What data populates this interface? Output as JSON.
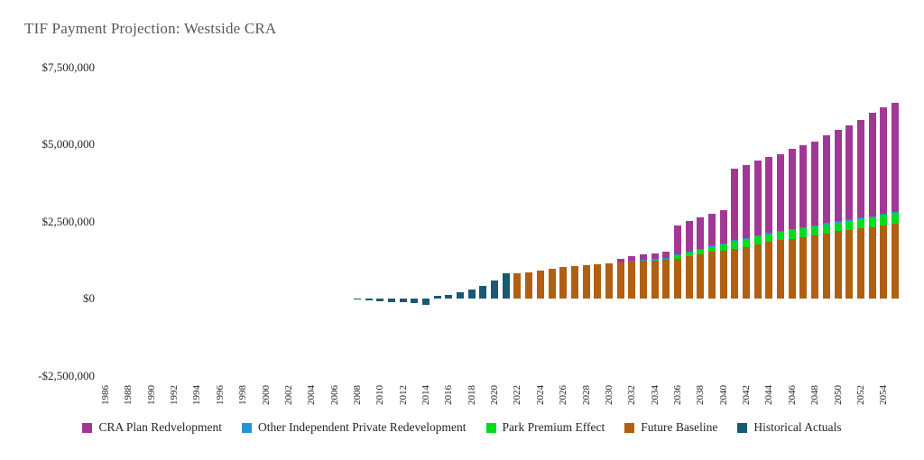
{
  "title": "TIF Payment Projection: Westside CRA",
  "chart_data": {
    "type": "bar",
    "stacked": true,
    "title": "TIF Payment Projection: Westside CRA",
    "xlabel": "",
    "ylabel": "",
    "grid": false,
    "legend_position": "bottom",
    "ylim": [
      -2500000,
      7500000
    ],
    "x_range": [
      1985,
      2056
    ],
    "y_ticks": [
      {
        "label": "$7,500,000",
        "value": 7500000
      },
      {
        "label": "$5,000,000",
        "value": 5000000
      },
      {
        "label": "$2,500,000",
        "value": 2500000
      },
      {
        "label": "$0",
        "value": 0
      },
      {
        "label": "-$2,500,000",
        "value": -2500000
      }
    ],
    "x_ticks": [
      1986,
      1988,
      1990,
      1992,
      1994,
      1996,
      1998,
      2000,
      2002,
      2004,
      2006,
      2008,
      2010,
      2012,
      2014,
      2016,
      2018,
      2020,
      2022,
      2024,
      2026,
      2028,
      2030,
      2032,
      2034,
      2036,
      2038,
      2040,
      2042,
      2044,
      2046,
      2048,
      2050,
      2052,
      2054
    ],
    "years": [
      2008,
      2009,
      2010,
      2011,
      2012,
      2013,
      2014,
      2015,
      2016,
      2017,
      2018,
      2019,
      2020,
      2021,
      2022,
      2023,
      2024,
      2025,
      2026,
      2027,
      2028,
      2029,
      2030,
      2031,
      2032,
      2033,
      2034,
      2035,
      2036,
      2037,
      2038,
      2039,
      2040,
      2041,
      2042,
      2043,
      2044,
      2045,
      2046,
      2047,
      2048,
      2049,
      2050,
      2051,
      2052,
      2053,
      2054,
      2055
    ],
    "stack_order_bottom_to_top": [
      "future_baseline",
      "park_premium",
      "other_independent",
      "cra_plan",
      "historical"
    ],
    "legend_order": [
      "cra_plan",
      "other_independent",
      "park_premium",
      "future_baseline",
      "historical"
    ],
    "series": [
      {
        "id": "cra_plan",
        "name": "CRA Plan Redvelopment",
        "color": "#A23896",
        "values": [
          0,
          0,
          0,
          0,
          0,
          0,
          0,
          0,
          0,
          0,
          0,
          0,
          0,
          0,
          0,
          0,
          0,
          0,
          0,
          0,
          0,
          0,
          0,
          110000,
          130000,
          160000,
          185000,
          210000,
          940000,
          990000,
          1020000,
          1030000,
          1080000,
          2310000,
          2350000,
          2420000,
          2460000,
          2490000,
          2600000,
          2660000,
          2720000,
          2850000,
          2960000,
          3050000,
          3170000,
          3350000,
          3450000,
          3540000
        ]
      },
      {
        "id": "other_independent",
        "name": "Other Independent Private Redevelopment",
        "color": "#2097D3",
        "values": [
          0,
          0,
          0,
          0,
          0,
          0,
          0,
          0,
          0,
          0,
          0,
          0,
          0,
          0,
          0,
          0,
          0,
          0,
          0,
          0,
          0,
          0,
          0,
          0,
          40000,
          40000,
          40000,
          40000,
          40000,
          40000,
          40000,
          40000,
          40000,
          40000,
          40000,
          40000,
          40000,
          40000,
          40000,
          40000,
          40000,
          40000,
          40000,
          40000,
          40000,
          40000,
          40000,
          40000
        ]
      },
      {
        "id": "park_premium",
        "name": "Park Premium Effect",
        "color": "#00DD1C",
        "values": [
          0,
          0,
          0,
          0,
          0,
          0,
          0,
          0,
          0,
          0,
          0,
          0,
          0,
          0,
          0,
          0,
          0,
          0,
          0,
          0,
          0,
          0,
          0,
          0,
          0,
          0,
          0,
          0,
          100000,
          125000,
          145000,
          170000,
          185000,
          240000,
          250000,
          255000,
          260000,
          265000,
          270000,
          275000,
          280000,
          285000,
          290000,
          300000,
          305000,
          315000,
          325000,
          330000
        ]
      },
      {
        "id": "future_baseline",
        "name": "Future Baseline",
        "color": "#B15F10",
        "values": [
          0,
          0,
          0,
          0,
          0,
          0,
          0,
          0,
          0,
          0,
          0,
          0,
          0,
          0,
          820000,
          860000,
          920000,
          965000,
          1010000,
          1050000,
          1080000,
          1110000,
          1140000,
          1170000,
          1200000,
          1230000,
          1240000,
          1270000,
          1290000,
          1360000,
          1430000,
          1510000,
          1560000,
          1610000,
          1680000,
          1750000,
          1830000,
          1890000,
          1940000,
          2000000,
          2060000,
          2120000,
          2180000,
          2220000,
          2280000,
          2320000,
          2380000,
          2440000
        ]
      },
      {
        "id": "historical",
        "name": "Historical Actuals",
        "color": "#1C5876",
        "values": [
          -20000,
          -60000,
          -80000,
          -105000,
          -125000,
          -160000,
          -195000,
          100000,
          120000,
          215000,
          295000,
          410000,
          585000,
          820000,
          0,
          0,
          0,
          0,
          0,
          0,
          0,
          0,
          0,
          0,
          0,
          0,
          0,
          0,
          0,
          0,
          0,
          0,
          0,
          0,
          0,
          0,
          0,
          0,
          0,
          0,
          0,
          0,
          0,
          0,
          0,
          0,
          0,
          0
        ]
      }
    ]
  }
}
